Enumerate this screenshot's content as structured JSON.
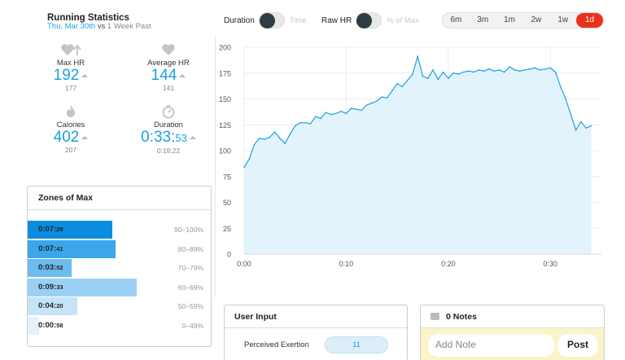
{
  "header": {
    "title": "Running Statistics",
    "date": "Thu, Mar 30th",
    "vs": "vs",
    "compare": "1 Week Past"
  },
  "toggles": {
    "duration_label": "Duration",
    "duration_alt": "Time",
    "rawhr_label": "Raw HR",
    "rawhr_alt": "% of Max"
  },
  "ranges": {
    "items": [
      "6m",
      "3m",
      "1m",
      "2w",
      "1w",
      "1d"
    ],
    "active": "1d"
  },
  "stats": {
    "max_hr": {
      "label": "Max HR",
      "value": "192",
      "prev": "177",
      "icon": "heart-up-icon"
    },
    "avg_hr": {
      "label": "Average HR",
      "value": "144",
      "prev": "141",
      "icon": "heart-icon"
    },
    "calories": {
      "label": "Calories",
      "value": "402",
      "prev": "207",
      "icon": "flame-icon"
    },
    "duration": {
      "label": "Duration",
      "value_main": "0:33:",
      "value_small": "53",
      "prev": "0:18:22",
      "icon": "stopwatch-icon"
    }
  },
  "zones": {
    "title": "Zones of Max",
    "rows": [
      {
        "time_main": "0:07:",
        "time_small": "29",
        "range": "90–100%",
        "fraction": 0.46,
        "color": "#0a8de0"
      },
      {
        "time_main": "0:07:",
        "time_small": "41",
        "range": "80–89%",
        "fraction": 0.475,
        "color": "#3aa6ec"
      },
      {
        "time_main": "0:03:",
        "time_small": "52",
        "range": "70–79%",
        "fraction": 0.24,
        "color": "#6cbcf0"
      },
      {
        "time_main": "0:09:",
        "time_small": "33",
        "range": "60–69%",
        "fraction": 0.59,
        "color": "#9ad0f4"
      },
      {
        "time_main": "0:04:",
        "time_small": "20",
        "range": "50–59%",
        "fraction": 0.27,
        "color": "#c6e4f8"
      },
      {
        "time_main": "0:00:",
        "time_small": "58",
        "range": "0–49%",
        "fraction": 0.06,
        "color": "#e6f2fb"
      }
    ]
  },
  "chart_data": {
    "type": "area",
    "ylim": [
      0,
      200
    ],
    "y_ticks": [
      "0",
      "25",
      "50",
      "75",
      "100",
      "125",
      "150",
      "175",
      "200"
    ],
    "x_ticks": [
      "0:00",
      "0:10",
      "0:20",
      "0:30"
    ],
    "x_tick_minutes": [
      0,
      10,
      20,
      30
    ],
    "xlim_minutes": [
      0,
      35
    ],
    "grid": true,
    "color": "#1ba1e2",
    "fill": "#e3f3fc",
    "x": [
      0,
      0.5,
      1,
      1.5,
      2,
      2.5,
      3,
      3.5,
      4,
      4.5,
      5,
      5.5,
      6,
      6.5,
      7,
      7.5,
      8,
      8.5,
      9,
      9.5,
      10,
      10.5,
      11,
      11.5,
      12,
      12.5,
      13,
      13.5,
      14,
      14.5,
      15,
      15.5,
      16,
      16.5,
      17,
      17.5,
      18,
      18.5,
      19,
      19.5,
      20,
      20.5,
      21,
      21.5,
      22,
      22.5,
      23,
      23.5,
      24,
      24.5,
      25,
      25.5,
      26,
      26.5,
      27,
      27.5,
      28,
      28.5,
      29,
      29.5,
      30,
      30.5,
      31,
      31.5,
      32,
      32.5,
      33,
      33.5,
      34
    ],
    "y": [
      84,
      92,
      106,
      112,
      111,
      113,
      118,
      112,
      107,
      116,
      124,
      127,
      127,
      126,
      133,
      131,
      137,
      135,
      136,
      138,
      136,
      141,
      140,
      139,
      144,
      146,
      148,
      152,
      151,
      158,
      165,
      162,
      168,
      174,
      191,
      172,
      170,
      178,
      169,
      176,
      170,
      175,
      174,
      176,
      177,
      176,
      178,
      177,
      179,
      177,
      178,
      176,
      181,
      178,
      177,
      178,
      179,
      180,
      178,
      179,
      180,
      176,
      162,
      150,
      135,
      120,
      128,
      122,
      124
    ]
  },
  "user_input": {
    "title": "User Input",
    "perceived_label": "Perceived Exertion",
    "perceived_value": "11"
  },
  "notes": {
    "title": "0 Notes",
    "placeholder": "Add Note",
    "post_label": "Post"
  }
}
